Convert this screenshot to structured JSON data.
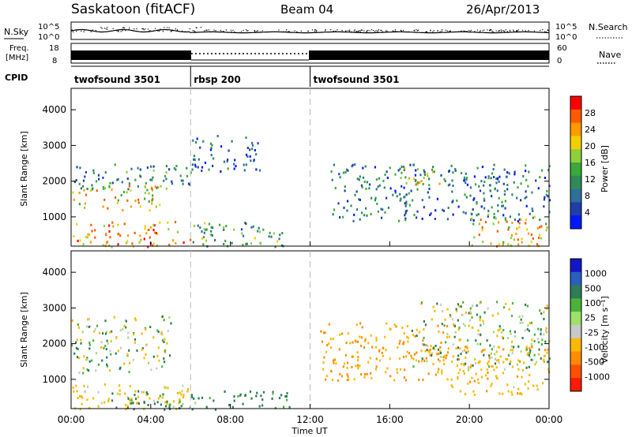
{
  "header": {
    "title": "Saskatoon (fitACF)",
    "beam": "Beam 04",
    "date": "26/Apr/2013"
  },
  "noise_panel": {
    "left_label": "N.Sky",
    "right_label": "N.Search",
    "left_ticks": [
      "10^5",
      "10^0"
    ],
    "right_ticks": [
      "10^5",
      "10^0"
    ]
  },
  "freq_panel": {
    "left_label_line1": "Freq.",
    "left_label_line2": "[MHz]",
    "right_label": "Nave",
    "left_ticks": [
      "18",
      "8"
    ],
    "right_ticks": [
      "60",
      "0"
    ]
  },
  "cpid": {
    "label": "CPID",
    "segments": [
      {
        "name": "twofsound 3501",
        "start_hour": 0,
        "end_hour": 6
      },
      {
        "name": "rbsp 200",
        "start_hour": 6,
        "end_hour": 12
      },
      {
        "name": "twofsound 3501",
        "start_hour": 12,
        "end_hour": 24
      }
    ]
  },
  "colors": {
    "power_scale": [
      "#0018ff",
      "#1f3fa8",
      "#2f6f9a",
      "#2e8b57",
      "#3aa83a",
      "#8fd03a",
      "#f2d000",
      "#ff9a00",
      "#ff5a00",
      "#ff0000"
    ],
    "velocity_scale": [
      "#1515c8",
      "#2a5fbf",
      "#2e7d55",
      "#49b33a",
      "#9fe06a",
      "#c8c8c8",
      "#ffb800",
      "#ff8c00",
      "#ff5000",
      "#ff1a00"
    ]
  },
  "chart_data": [
    {
      "type": "heatmap",
      "name": "power",
      "xlabel": "",
      "ylabel": "Slant Range [km]",
      "xlim": [
        0,
        24
      ],
      "ylim": [
        180,
        4600
      ],
      "yticks": [
        1000,
        2000,
        3000,
        4000
      ],
      "colorbar": {
        "label": "Power [dB]",
        "tick_labels": [
          "4",
          "8",
          "12",
          "16",
          "20",
          "24",
          "28"
        ],
        "range": [
          0,
          30
        ]
      },
      "approx_echo_regions": [
        {
          "t_start": 0.0,
          "t_end": 6.0,
          "range_start": 180,
          "range_end": 900,
          "power_db": 22
        },
        {
          "t_start": 0.0,
          "t_end": 4.5,
          "range_start": 1200,
          "range_end": 1900,
          "power_db": 20
        },
        {
          "t_start": 0.0,
          "t_end": 6.0,
          "range_start": 1800,
          "range_end": 2500,
          "power_db": 10
        },
        {
          "t_start": 6.0,
          "t_end": 9.5,
          "range_start": 2300,
          "range_end": 3300,
          "power_db": 6
        },
        {
          "t_start": 6.0,
          "t_end": 11.0,
          "range_start": 180,
          "range_end": 900,
          "power_db": 12
        },
        {
          "t_start": 13.0,
          "t_end": 24.0,
          "range_start": 900,
          "range_end": 2500,
          "power_db": 8
        },
        {
          "t_start": 16.5,
          "t_end": 18.5,
          "range_start": 1900,
          "range_end": 2500,
          "power_db": 18
        },
        {
          "t_start": 20.0,
          "t_end": 24.0,
          "range_start": 180,
          "range_end": 1100,
          "power_db": 20
        }
      ]
    },
    {
      "type": "heatmap",
      "name": "velocity",
      "xlabel": "Time UT",
      "ylabel": "Slant Range [km]",
      "xlim": [
        0,
        24
      ],
      "ylim": [
        180,
        4600
      ],
      "xticks": [
        "00:00",
        "04:00",
        "08:00",
        "12:00",
        "16:00",
        "20:00",
        "00:00"
      ],
      "yticks": [
        1000,
        2000,
        3000,
        4000
      ],
      "colorbar": {
        "label": "Velocity [m s⁻¹]",
        "tick_labels": [
          "1000",
          "500",
          "100",
          "25",
          "-25",
          "-100",
          "-500",
          "-1000"
        ]
      },
      "approx_echo_regions": [
        {
          "t_start": 0.0,
          "t_end": 5.0,
          "range_start": 1200,
          "range_end": 2800,
          "velocity_ms": 0
        },
        {
          "t_start": 0.0,
          "t_end": 6.0,
          "range_start": 180,
          "range_end": 900,
          "velocity_ms": -150
        },
        {
          "t_start": 2.0,
          "t_end": 11.0,
          "range_start": 180,
          "range_end": 700,
          "velocity_ms": 150
        },
        {
          "t_start": 12.5,
          "t_end": 19.0,
          "range_start": 1000,
          "range_end": 2600,
          "velocity_ms": -300
        },
        {
          "t_start": 19.0,
          "t_end": 24.0,
          "range_start": 600,
          "range_end": 2000,
          "velocity_ms": -200
        },
        {
          "t_start": 17.0,
          "t_end": 24.0,
          "range_start": 1300,
          "range_end": 3200,
          "velocity_ms": 0
        }
      ]
    }
  ]
}
